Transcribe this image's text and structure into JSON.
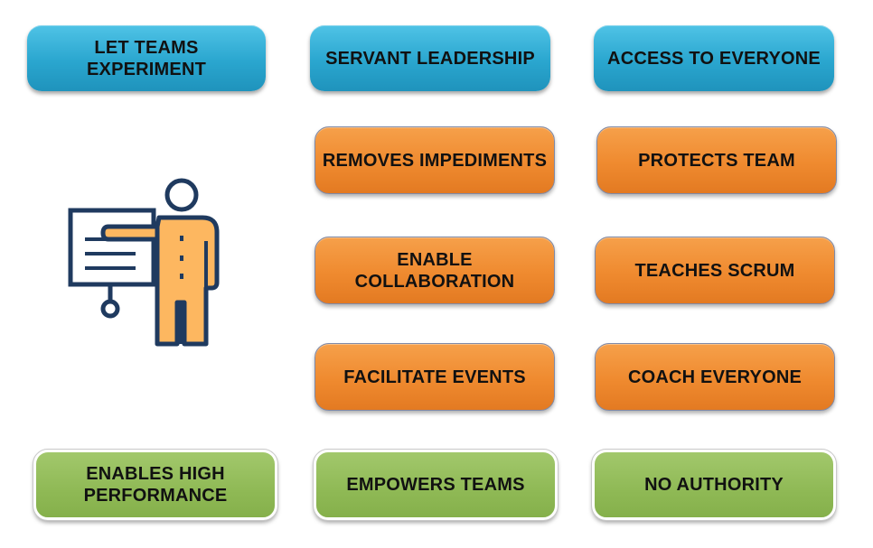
{
  "boxes": {
    "let_teams_experiment": "LET TEAMS EXPERIMENT",
    "servant_leadership": "SERVANT LEADERSHIP",
    "access_to_everyone": "ACCESS TO EVERYONE",
    "removes_impediments": "REMOVES IMPEDIMENTS",
    "protects_team": "PROTECTS TEAM",
    "enable_collaboration": "ENABLE COLLABORATION",
    "teaches_scrum": "TEACHES SCRUM",
    "facilitate_events": "FACILITATE EVENTS",
    "coach_everyone": "COACH EVERYONE",
    "enables_high_performance": "ENABLES HIGH\nPERFORMANCE",
    "empowers_teams": "EMPOWERS TEAMS",
    "no_authority": "NO AUTHORITY"
  },
  "colors": {
    "blue": "#2aa6cf",
    "orange": "#ef8a2f",
    "green": "#8fb955",
    "figure_body": "#fdb760",
    "figure_outline": "#1f3a5f"
  },
  "icon": "presenter-at-board-icon"
}
